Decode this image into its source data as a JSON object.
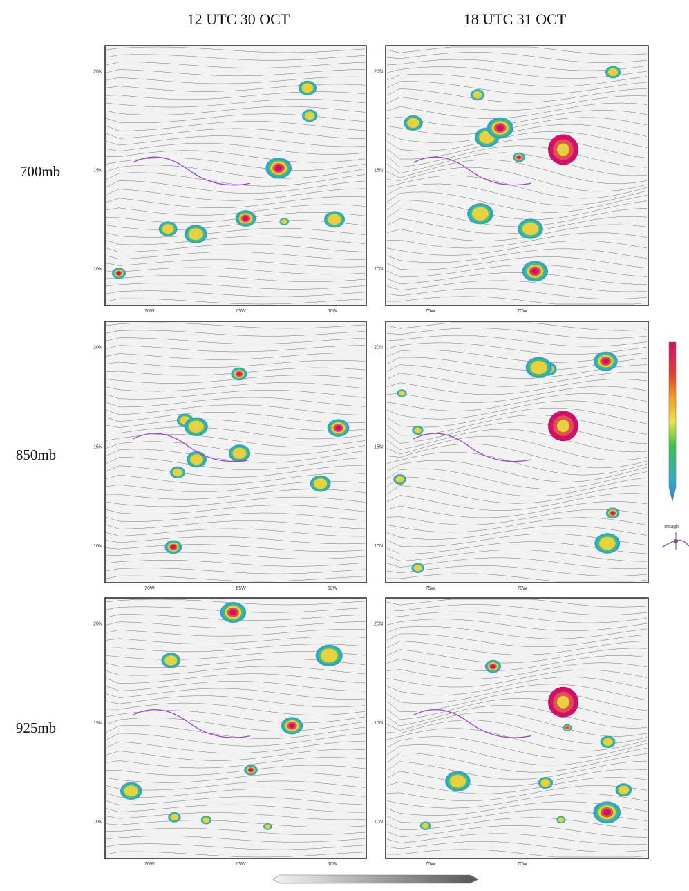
{
  "columns": [
    {
      "title": "12 UTC 30 OCT",
      "x_labels": [
        "70W",
        "65W",
        "60W"
      ]
    },
    {
      "title": "18 UTC 31 OCT",
      "x_labels": [
        "75W",
        "70W"
      ]
    }
  ],
  "rows": [
    {
      "label": "700mb"
    },
    {
      "label": "850mb"
    },
    {
      "label": "925mb"
    }
  ],
  "y_labels": [
    "20N",
    "15N",
    "10N"
  ],
  "legend": {
    "trough_label": "Trough"
  }
}
